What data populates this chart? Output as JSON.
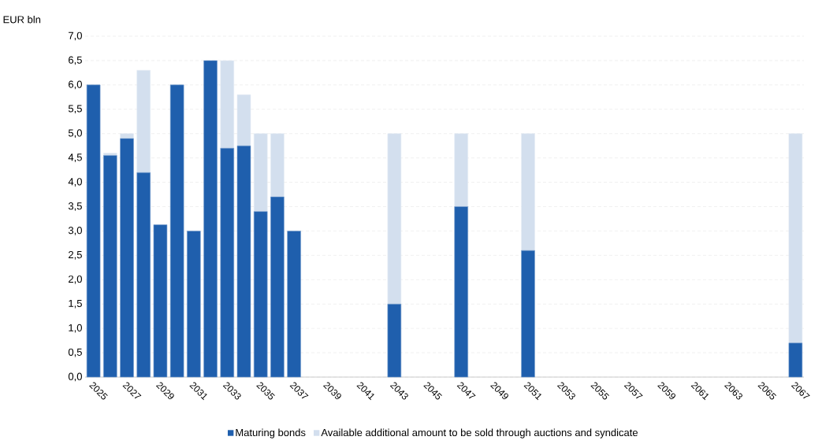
{
  "chart_data": {
    "type": "bar",
    "stacked": true,
    "ylabel": "EUR bln",
    "categories": [
      "2025",
      null,
      "2027",
      null,
      "2029",
      null,
      "2031",
      null,
      "2033",
      null,
      "2035",
      null,
      "2037",
      null,
      "2039",
      null,
      "2041",
      null,
      "2043",
      null,
      "2045",
      null,
      "2047",
      null,
      "2049",
      null,
      "2051",
      null,
      "2053",
      null,
      "2055",
      null,
      "2057",
      null,
      "2059",
      null,
      "2061",
      null,
      "2063",
      null,
      "2065",
      null,
      "2067"
    ],
    "series": [
      {
        "name": "Maturing bonds",
        "color": "#1f5fad",
        "values": [
          6.0,
          4.55,
          4.9,
          4.2,
          3.13,
          6.0,
          3.0,
          6.5,
          4.7,
          4.75,
          3.4,
          3.7,
          3.0,
          null,
          null,
          null,
          null,
          null,
          1.5,
          null,
          null,
          null,
          3.5,
          null,
          null,
          null,
          2.6,
          null,
          null,
          null,
          null,
          null,
          null,
          null,
          null,
          null,
          null,
          null,
          null,
          null,
          null,
          null,
          0.7
        ]
      },
      {
        "name": "Available additional amount to be sold through auctions and syndicate",
        "color": "#d3dfee",
        "values": [
          null,
          0.05,
          0.1,
          2.1,
          null,
          null,
          null,
          null,
          1.8,
          1.05,
          1.6,
          1.3,
          null,
          null,
          null,
          null,
          null,
          null,
          3.5,
          null,
          null,
          null,
          1.5,
          null,
          null,
          null,
          2.4,
          null,
          null,
          null,
          null,
          null,
          null,
          null,
          null,
          null,
          null,
          null,
          null,
          null,
          null,
          null,
          4.3
        ]
      }
    ],
    "ylim": [
      0,
      7
    ],
    "yticks": [
      {
        "value": 0,
        "label": "0,0"
      },
      {
        "value": 0.5,
        "label": "0,5"
      },
      {
        "value": 1,
        "label": "1,0"
      },
      {
        "value": 1.5,
        "label": "1,5"
      },
      {
        "value": 2,
        "label": "2,0"
      },
      {
        "value": 2.5,
        "label": "2,5"
      },
      {
        "value": 3,
        "label": "3,0"
      },
      {
        "value": 3.5,
        "label": "3,5"
      },
      {
        "value": 4,
        "label": "4,0"
      },
      {
        "value": 4.5,
        "label": "4,5"
      },
      {
        "value": 5,
        "label": "5,0"
      },
      {
        "value": 5.5,
        "label": "5,5"
      },
      {
        "value": 6,
        "label": "6,0"
      },
      {
        "value": 6.5,
        "label": "6,5"
      },
      {
        "value": 7,
        "label": "7,0"
      }
    ],
    "grid": "y",
    "legend": "bottom"
  }
}
